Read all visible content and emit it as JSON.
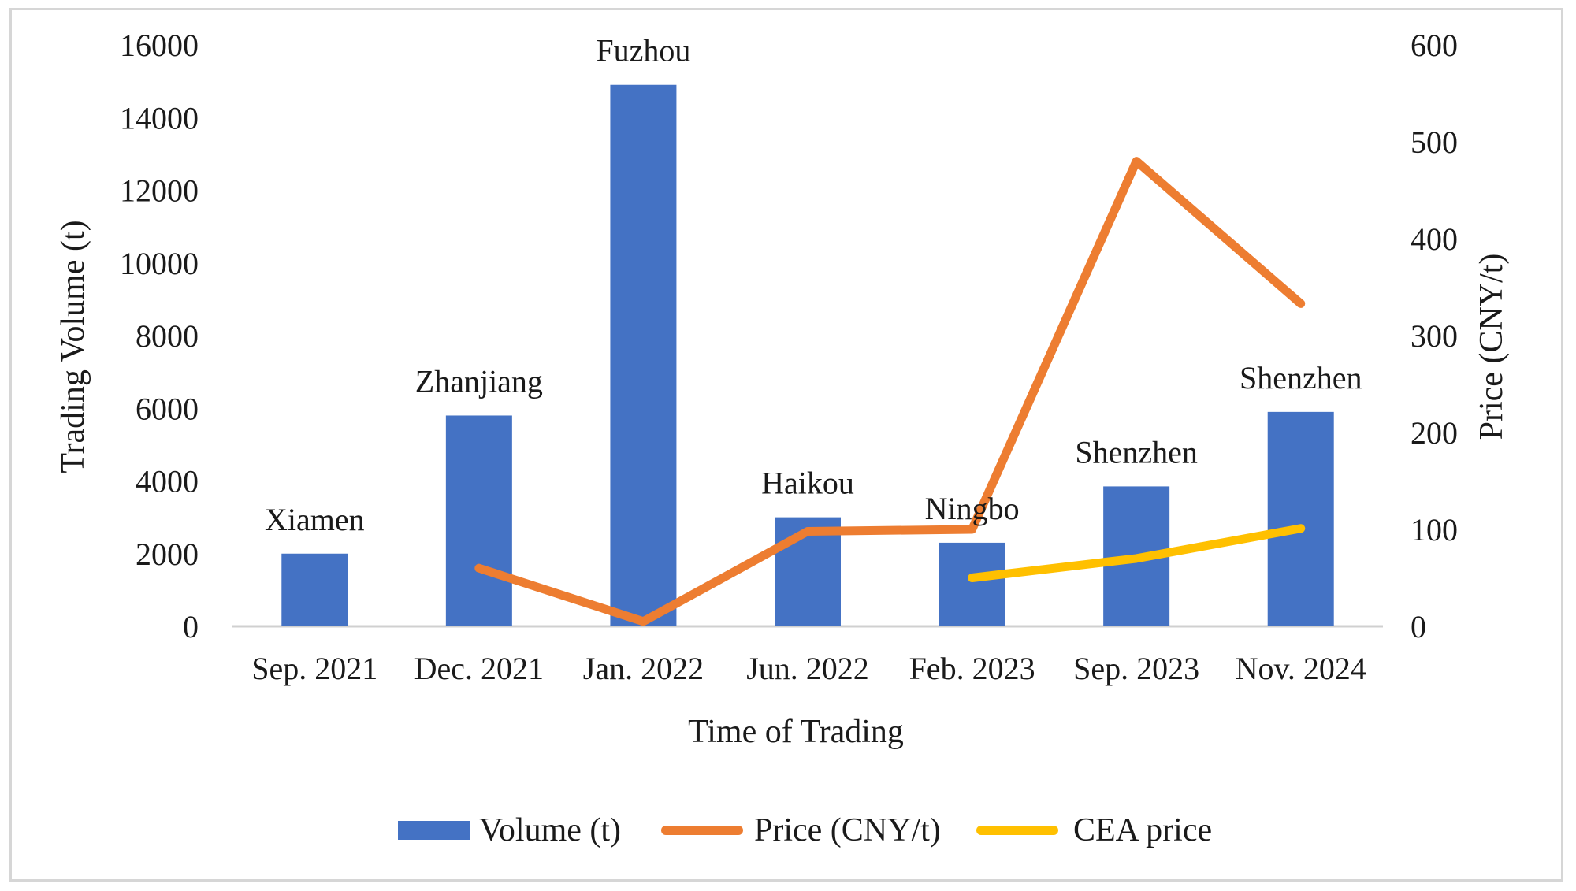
{
  "chart_data": {
    "type": "bar",
    "xlabel": "Time of Trading",
    "ylabel": "Trading Volume (t)",
    "y2label": "Price (CNY/t)",
    "categories": [
      "Sep. 2021",
      "Dec. 2021",
      "Jan. 2022",
      "Jun. 2022",
      "Feb. 2023",
      "Sep. 2023",
      "Nov. 2024"
    ],
    "cities": [
      "Xiamen",
      "Zhanjiang",
      "Fuzhou",
      "Haikou",
      "Ningbo",
      "Shenzhen",
      "Shenzhen"
    ],
    "ylim": [
      0,
      16000
    ],
    "yticks": [
      "0",
      "2000",
      "4000",
      "6000",
      "8000",
      "10000",
      "12000",
      "14000",
      "16000"
    ],
    "y2lim": [
      0,
      600
    ],
    "y2ticks": [
      "0",
      "100",
      "200",
      "300",
      "400",
      "500",
      "600"
    ],
    "series": [
      {
        "name": "Volume (t)",
        "type": "bar",
        "axis": "left",
        "color": "#4472c4",
        "values": [
          2000,
          5800,
          14900,
          3000,
          2300,
          3850,
          5900
        ]
      },
      {
        "name": "Price (CNY/t)",
        "type": "line",
        "axis": "right",
        "color": "#ed7d31",
        "values": [
          null,
          60,
          5,
          98,
          100,
          480,
          333
        ]
      },
      {
        "name": "CEA price",
        "type": "line",
        "axis": "right",
        "color": "#ffc000",
        "values": [
          null,
          null,
          null,
          null,
          50,
          70,
          101
        ]
      }
    ],
    "legend_position": "bottom",
    "grid": false
  }
}
